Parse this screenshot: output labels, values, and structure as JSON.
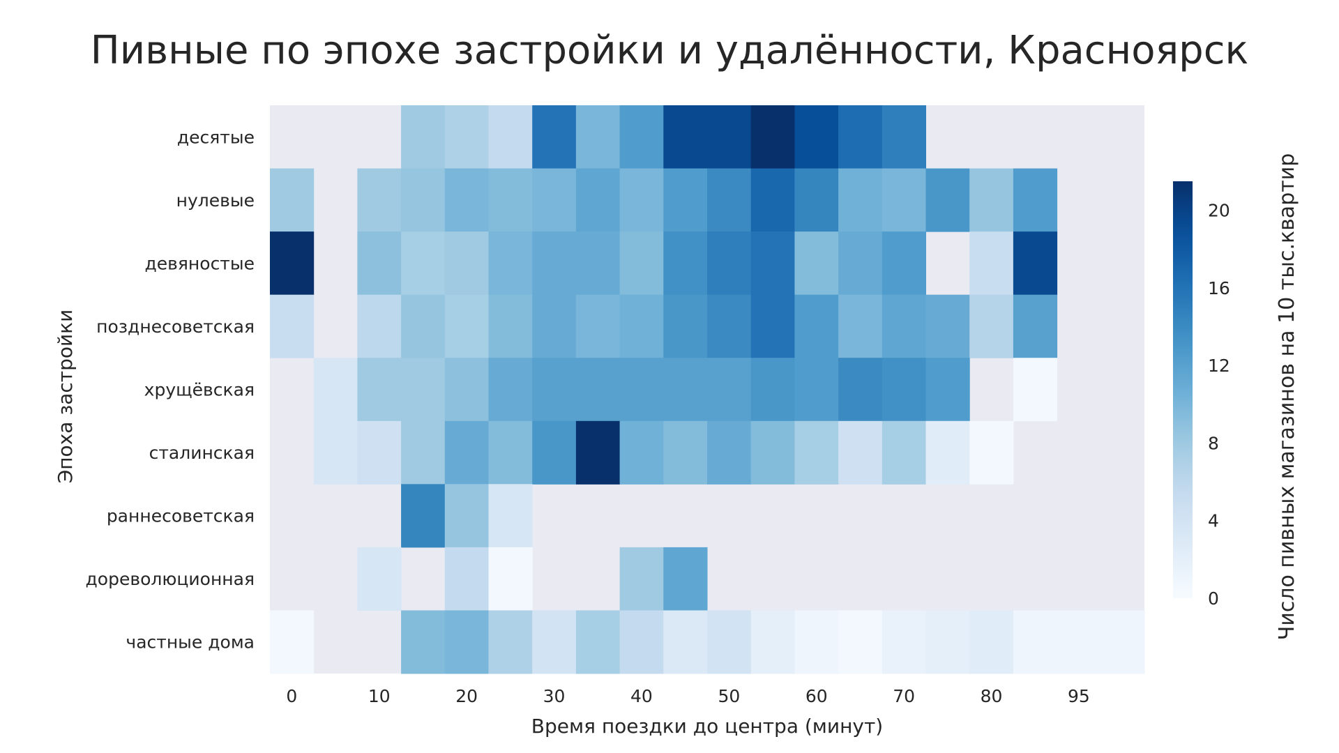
{
  "chart_data": {
    "type": "heatmap",
    "title": "Пивные по эпохе застройки и удалённости, Красноярск",
    "xlabel": "Время поездки до центра (минут)",
    "ylabel": "Эпоха застройки",
    "colorbar_label": "Число пивных магазинов на 10 тыс.квартир",
    "colormap": "Blues",
    "missing_color": "#EAEAF2",
    "vmin": 0,
    "vmax": 21.5,
    "colorbar_ticks": [
      0,
      4,
      8,
      12,
      16,
      20
    ],
    "x_categories": [
      0,
      5,
      10,
      15,
      20,
      25,
      30,
      35,
      40,
      45,
      50,
      55,
      60,
      65,
      70,
      75,
      80,
      85,
      90,
      95
    ],
    "x_tick_labels": [
      "0",
      "10",
      "20",
      "30",
      "40",
      "50",
      "60",
      "70",
      "80",
      "95"
    ],
    "y_categories": [
      "десятые",
      "нулевые",
      "девяностые",
      "позднесоветская",
      "хрущёвская",
      "сталинская",
      "раннесоветская",
      "дореволюционная",
      "частные дома"
    ],
    "values": [
      [
        null,
        null,
        null,
        8,
        7,
        5.5,
        16,
        10,
        12.5,
        19.5,
        19.5,
        22,
        19,
        16.5,
        15,
        null,
        null,
        null,
        null,
        null
      ],
      [
        8,
        null,
        8,
        8.5,
        10,
        9.5,
        10,
        11.5,
        10,
        12.5,
        14,
        17,
        14.5,
        10.5,
        10,
        13,
        8.5,
        12.5,
        null,
        null
      ],
      [
        22,
        null,
        9,
        7.5,
        8,
        10,
        11,
        11,
        9.5,
        13.5,
        15,
        16,
        9.5,
        11,
        12.5,
        null,
        5,
        19.5,
        null,
        null
      ],
      [
        5,
        null,
        6,
        8.5,
        7.5,
        9.5,
        11,
        10,
        10.5,
        13,
        14,
        16,
        12.5,
        10,
        11.5,
        11,
        6.5,
        12,
        null,
        null
      ],
      [
        null,
        3.5,
        8,
        8,
        9,
        11,
        12,
        12,
        12,
        12,
        12,
        13,
        12.5,
        14,
        13.5,
        12.5,
        null,
        0.5,
        null,
        null
      ],
      [
        null,
        3.5,
        4.5,
        8,
        11,
        9.5,
        13,
        22,
        10.5,
        9.5,
        11,
        9.5,
        7.5,
        4.5,
        7.5,
        2.5,
        0.5,
        null,
        null,
        null
      ],
      [
        null,
        null,
        null,
        14.5,
        8.5,
        3.5,
        null,
        null,
        null,
        null,
        null,
        null,
        null,
        null,
        null,
        null,
        null,
        null,
        null,
        null
      ],
      [
        null,
        null,
        3.5,
        null,
        5.5,
        0.5,
        null,
        null,
        8,
        11.5,
        null,
        null,
        null,
        null,
        null,
        null,
        null,
        null,
        null,
        null
      ],
      [
        0.5,
        null,
        null,
        9.5,
        10,
        7,
        4,
        7.5,
        5.5,
        3,
        4,
        2,
        1,
        0.5,
        1.5,
        2,
        2.5,
        1,
        1,
        1
      ]
    ]
  }
}
